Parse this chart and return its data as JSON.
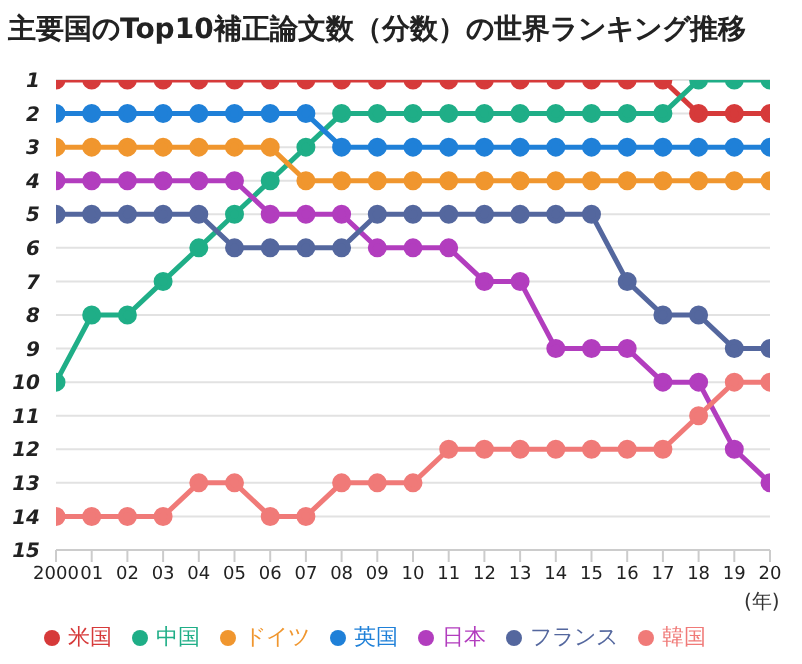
{
  "chart_data": {
    "type": "line",
    "title": "主要国のTop10補正論文数（分数）の世界ランキング推移",
    "xlabel": "(年)",
    "x": [
      2000,
      2001,
      2002,
      2003,
      2004,
      2005,
      2006,
      2007,
      2008,
      2009,
      2010,
      2011,
      2012,
      2013,
      2014,
      2015,
      2016,
      2017,
      2018,
      2019,
      2020
    ],
    "xlim": [
      2000,
      2020
    ],
    "xticks": [
      2000,
      {
        "value": 2001,
        "label": "01"
      },
      {
        "value": 2002,
        "label": "02"
      },
      {
        "value": 2003,
        "label": "03"
      },
      {
        "value": 2004,
        "label": "04"
      },
      {
        "value": 2005,
        "label": "05"
      },
      {
        "value": 2006,
        "label": "06"
      },
      {
        "value": 2007,
        "label": "07"
      },
      {
        "value": 2008,
        "label": "08"
      },
      {
        "value": 2009,
        "label": "09"
      },
      {
        "value": 2010,
        "label": "10"
      },
      {
        "value": 2011,
        "label": "11"
      },
      {
        "value": 2012,
        "label": "12"
      },
      {
        "value": 2013,
        "label": "13"
      },
      {
        "value": 2014,
        "label": "14"
      },
      {
        "value": 2015,
        "label": "15"
      },
      {
        "value": 2016,
        "label": "16"
      },
      {
        "value": 2017,
        "label": "17"
      },
      {
        "value": 2018,
        "label": "18"
      },
      {
        "value": 2019,
        "label": "19"
      },
      {
        "value": 2020,
        "label": "20"
      }
    ],
    "ylim": [
      15,
      1
    ],
    "yticks": [
      1,
      2,
      3,
      4,
      5,
      6,
      7,
      8,
      9,
      10,
      11,
      12,
      13,
      14,
      15
    ],
    "grid": "y",
    "legend": "bottom",
    "marker": "circle",
    "line_style": "solid",
    "series": [
      {
        "name": "米国",
        "color": "#d63a3a",
        "values": [
          1,
          1,
          1,
          1,
          1,
          1,
          1,
          1,
          1,
          1,
          1,
          1,
          1,
          1,
          1,
          1,
          1,
          1,
          2,
          2,
          2
        ]
      },
      {
        "name": "中国",
        "color": "#1fae87",
        "values": [
          10,
          8,
          8,
          7,
          6,
          5,
          4,
          3,
          2,
          2,
          2,
          2,
          2,
          2,
          2,
          2,
          2,
          2,
          1,
          1,
          1
        ]
      },
      {
        "name": "ドイツ",
        "color": "#f0962e",
        "values": [
          3,
          3,
          3,
          3,
          3,
          3,
          3,
          4,
          4,
          4,
          4,
          4,
          4,
          4,
          4,
          4,
          4,
          4,
          4,
          4,
          4
        ]
      },
      {
        "name": "英国",
        "color": "#1f80d8",
        "values": [
          2,
          2,
          2,
          2,
          2,
          2,
          2,
          2,
          3,
          3,
          3,
          3,
          3,
          3,
          3,
          3,
          3,
          3,
          3,
          3,
          3
        ]
      },
      {
        "name": "日本",
        "color": "#b23dbe",
        "values": [
          4,
          4,
          4,
          4,
          4,
          4,
          5,
          5,
          5,
          6,
          6,
          6,
          7,
          7,
          9,
          9,
          9,
          10,
          10,
          12,
          13
        ]
      },
      {
        "name": "フランス",
        "color": "#54679e",
        "values": [
          5,
          5,
          5,
          5,
          5,
          6,
          6,
          6,
          6,
          5,
          5,
          5,
          5,
          5,
          5,
          5,
          7,
          8,
          8,
          9,
          9
        ]
      },
      {
        "name": "韓国",
        "color": "#f07a78",
        "values": [
          14,
          14,
          14,
          14,
          13,
          13,
          14,
          14,
          13,
          13,
          13,
          12,
          12,
          12,
          12,
          12,
          12,
          12,
          11,
          10,
          10
        ]
      }
    ]
  }
}
